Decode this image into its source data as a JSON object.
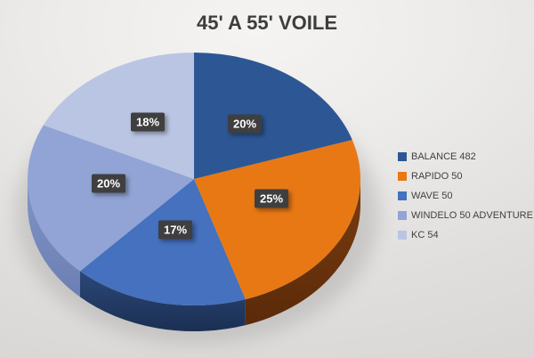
{
  "page": {
    "background_top": "#F5F4F2",
    "background_bottom": "#D5D4D2"
  },
  "chart_data": {
    "type": "pie",
    "style": "3d",
    "title": "45' A 55' VOILE",
    "title_color": "#3D3D3D",
    "legend_position": "right",
    "legend_text_color": "#404040",
    "direction": "clockwise",
    "start_angle_deg": 0,
    "total": 100,
    "slices": [
      {
        "label": "BALANCE 482",
        "value": 20,
        "pct": "20%",
        "color": "#2D5794"
      },
      {
        "label": "RAPIDO 50",
        "value": 25,
        "pct": "25%",
        "color": "#E87814",
        "rim_top": "#7A3D10",
        "rim_bottom": "#5B2A09"
      },
      {
        "label": "WAVE 50",
        "value": 17,
        "pct": "17%",
        "color": "#4571BE",
        "rim_top": "#2B4878",
        "rim_bottom": "#1B2F53"
      },
      {
        "label": "WINDELO 50 ADVENTURE",
        "value": 20,
        "pct": "20%",
        "color": "#91A4D5",
        "rim_top": "#8094C7",
        "rim_bottom": "#6B7FB4"
      },
      {
        "label": "KC 54",
        "value": 18,
        "pct": "18%",
        "color": "#BAC5E3"
      }
    ],
    "data_label": {
      "bg": "#3F3F3F",
      "color": "#FFFFFF"
    }
  }
}
